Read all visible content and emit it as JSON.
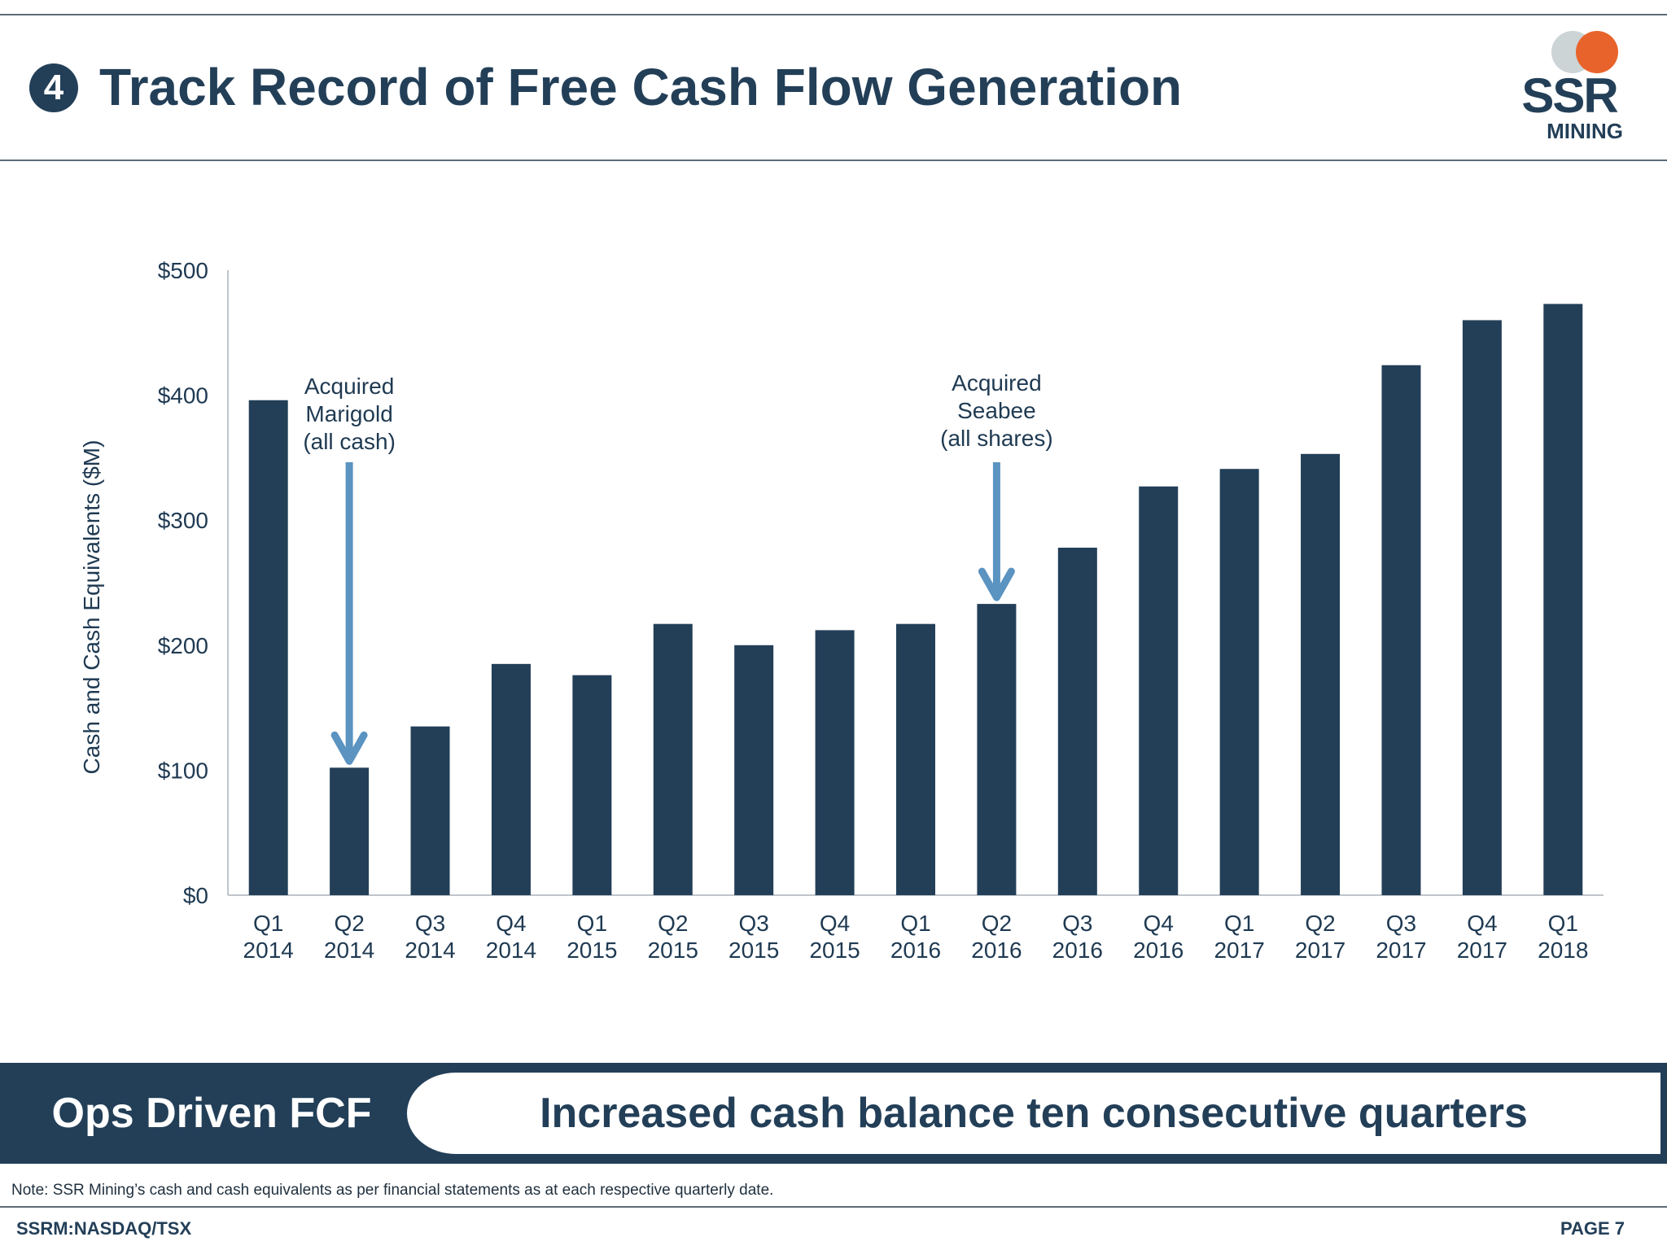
{
  "header": {
    "section_number": "4",
    "title": "Track Record of Free Cash Flow Generation",
    "logo_top": "SSR",
    "logo_bottom": "MINING"
  },
  "chart_data": {
    "type": "bar",
    "categories": [
      [
        "Q1",
        "2014"
      ],
      [
        "Q2",
        "2014"
      ],
      [
        "Q3",
        "2014"
      ],
      [
        "Q4",
        "2014"
      ],
      [
        "Q1",
        "2015"
      ],
      [
        "Q2",
        "2015"
      ],
      [
        "Q3",
        "2015"
      ],
      [
        "Q4",
        "2015"
      ],
      [
        "Q1",
        "2016"
      ],
      [
        "Q2",
        "2016"
      ],
      [
        "Q3",
        "2016"
      ],
      [
        "Q4",
        "2016"
      ],
      [
        "Q1",
        "2017"
      ],
      [
        "Q2",
        "2017"
      ],
      [
        "Q3",
        "2017"
      ],
      [
        "Q4",
        "2017"
      ],
      [
        "Q1",
        "2018"
      ]
    ],
    "values": [
      396,
      102,
      135,
      185,
      176,
      217,
      200,
      212,
      217,
      233,
      278,
      327,
      341,
      353,
      424,
      460,
      473
    ],
    "ylabel": "Cash and Cash Equivalents ($M)",
    "ylim": [
      0,
      500
    ],
    "yticks": [
      "$0",
      "$100",
      "$200",
      "$300",
      "$400",
      "$500"
    ],
    "grid": false,
    "bar_color": "#233f58",
    "arrow_color": "#5b93c1",
    "annotations": [
      {
        "category_index": 1,
        "lines": [
          "Acquired",
          "Marigold",
          "(all cash)"
        ]
      },
      {
        "category_index": 9,
        "lines": [
          "Acquired",
          "Seabee",
          "(all shares)"
        ]
      }
    ]
  },
  "banner": {
    "left_label": "Ops Driven FCF",
    "right_text": "Increased cash balance ten consecutive quarters"
  },
  "note": "Note: SSR Mining’s cash and cash equivalents as per financial statements as at each respective quarterly date.",
  "footer": {
    "ticker": "SSRM:NASDAQ/TSX",
    "page": "PAGE 7"
  }
}
